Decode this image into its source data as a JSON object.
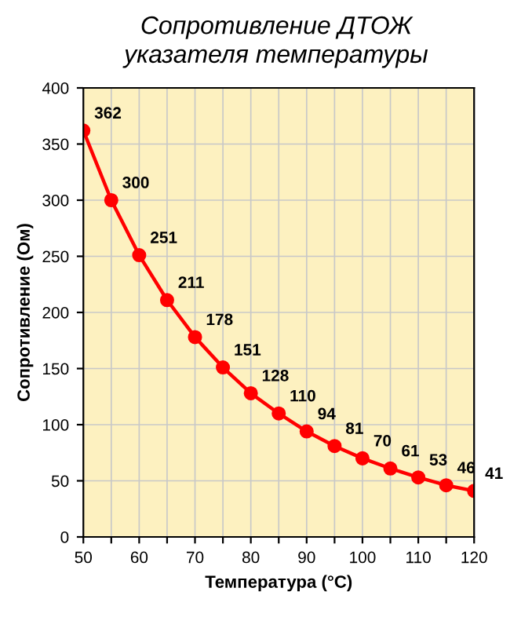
{
  "chart_data": {
    "type": "line",
    "title": "Сопротивление ДТОЖ\nуказателя температуры",
    "xlabel": "Температура (°C)",
    "ylabel": "Сопротивление (Ом)",
    "x": [
      50,
      55,
      60,
      65,
      70,
      75,
      80,
      85,
      90,
      95,
      100,
      105,
      110,
      115,
      120
    ],
    "series": [
      {
        "color": "#ff0000",
        "values": [
          362,
          300,
          251,
          211,
          178,
          151,
          128,
          110,
          94,
          81,
          70,
          61,
          53,
          46,
          41
        ]
      }
    ],
    "xlim": [
      50,
      120
    ],
    "xticks": [
      50,
      {
        "value": 55,
        "label": null
      },
      60,
      {
        "value": 65,
        "label": null
      },
      70,
      {
        "value": 75,
        "label": null
      },
      80,
      {
        "value": 85,
        "label": null
      },
      90,
      {
        "value": 95,
        "label": null
      },
      100,
      {
        "value": 105,
        "label": null
      },
      110,
      {
        "value": 115,
        "label": null
      },
      120
    ],
    "ylim": [
      0,
      400
    ],
    "yticks": [
      0,
      50,
      100,
      150,
      200,
      250,
      300,
      350,
      400
    ],
    "grid": true,
    "marker": "circle",
    "line_style": "solid",
    "data_labels": true
  }
}
